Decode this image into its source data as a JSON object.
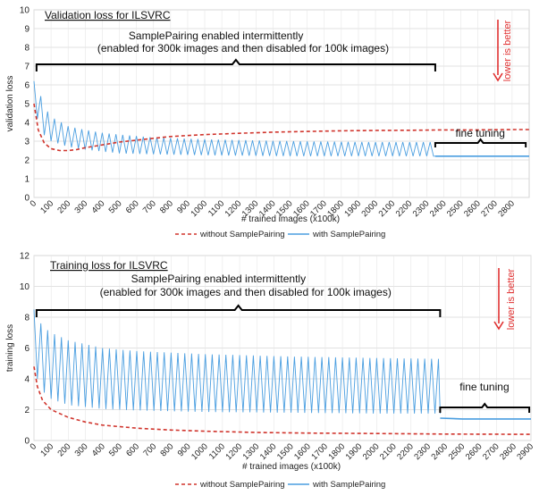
{
  "chart_data": [
    {
      "type": "line",
      "title": "Validation loss for ILSVRC",
      "xlabel": "# trained images (x100k)",
      "ylabel": "validation loss",
      "xlim": [
        0,
        2900
      ],
      "ylim": [
        0,
        10
      ],
      "x_ticks": [
        "0",
        "100",
        "200",
        "300",
        "400",
        "500",
        "600",
        "700",
        "800",
        "900",
        "1000",
        "1100",
        "1200",
        "1300",
        "1400",
        "1500",
        "1600",
        "1700",
        "1800",
        "1900",
        "2000",
        "2100",
        "2200",
        "2300",
        "2400",
        "2500",
        "2600",
        "2700",
        "2800"
      ],
      "y_ticks": [
        "0",
        "1",
        "2",
        "3",
        "4",
        "5",
        "6",
        "7",
        "8",
        "9",
        "10"
      ],
      "grid": true,
      "legend_position": "bottom",
      "annotations": {
        "brace_label": "SamplePairing enabled intermittently",
        "brace_sublabel": "(enabled for 300k images and then disabled for 100k images)",
        "brace_x_range": [
          15,
          2350
        ],
        "fine_label": "fine tuning",
        "fine_x_range": [
          2350,
          2880
        ],
        "lower_label": "lower is better"
      },
      "series": [
        {
          "name": "without SamplePairing",
          "color": "#d0342c",
          "style": "dashed",
          "x": [
            0,
            25,
            60,
            100,
            150,
            200,
            250,
            300,
            400,
            500,
            600,
            700,
            800,
            1000,
            1200,
            1400,
            1600,
            1800,
            2000,
            2200,
            2400,
            2600,
            2800,
            2900
          ],
          "y": [
            5.0,
            3.6,
            2.9,
            2.6,
            2.5,
            2.5,
            2.55,
            2.65,
            2.8,
            2.95,
            3.05,
            3.15,
            3.25,
            3.35,
            3.42,
            3.48,
            3.52,
            3.55,
            3.57,
            3.58,
            3.6,
            3.6,
            3.62,
            3.62
          ]
        },
        {
          "name": "with SamplePairing",
          "color": "#4a9ee0",
          "style": "solid",
          "upper_x": [
            0,
            20,
            50,
            100,
            200,
            300,
            400,
            500,
            700,
            1000,
            1500,
            2000,
            2350
          ],
          "upper_y": [
            6.2,
            6.2,
            5.0,
            4.3,
            3.8,
            3.6,
            3.45,
            3.35,
            3.2,
            3.1,
            3.0,
            2.95,
            2.95
          ],
          "lower_x": [
            0,
            20,
            50,
            100,
            200,
            300,
            400,
            500,
            700,
            1000,
            1500,
            2000,
            2350
          ],
          "lower_y": [
            5.0,
            4.2,
            3.4,
            3.0,
            2.7,
            2.55,
            2.45,
            2.35,
            2.3,
            2.25,
            2.2,
            2.2,
            2.2
          ],
          "fine_tuning_x": [
            2350,
            2900
          ],
          "fine_tuning_y": [
            2.2,
            2.2
          ],
          "period": 40
        }
      ]
    },
    {
      "type": "line",
      "title": "Training loss for ILSVRC",
      "xlabel": "# trained images (x100k)",
      "ylabel": "training loss",
      "xlim": [
        0,
        2900
      ],
      "ylim": [
        0,
        12
      ],
      "x_ticks": [
        "0",
        "100",
        "200",
        "300",
        "400",
        "500",
        "600",
        "700",
        "800",
        "900",
        "1000",
        "1100",
        "1200",
        "1300",
        "1400",
        "1500",
        "1600",
        "1700",
        "1800",
        "1900",
        "2000",
        "2100",
        "2200",
        "2300",
        "2400",
        "2500",
        "2600",
        "2700",
        "2800",
        "2900"
      ],
      "y_ticks": [
        "0",
        "2",
        "4",
        "6",
        "8",
        "10",
        "12"
      ],
      "grid": true,
      "legend_position": "bottom",
      "annotations": {
        "brace_label": "SamplePairing enabled intermittently",
        "brace_sublabel": "(enabled for 300k images and then disabled for 100k images)",
        "brace_x_range": [
          15,
          2370
        ],
        "fine_label": "fine tuning",
        "fine_x_range": [
          2370,
          2890
        ],
        "lower_label": "lower is better"
      },
      "series": [
        {
          "name": "without SamplePairing",
          "color": "#d0342c",
          "style": "dashed",
          "x": [
            0,
            20,
            50,
            100,
            200,
            300,
            400,
            600,
            800,
            1000,
            1300,
            1600,
            2000,
            2400,
            2900
          ],
          "y": [
            4.8,
            3.5,
            2.6,
            2.0,
            1.5,
            1.2,
            1.0,
            0.8,
            0.68,
            0.6,
            0.52,
            0.48,
            0.45,
            0.42,
            0.4
          ]
        },
        {
          "name": "with SamplePairing",
          "color": "#4a9ee0",
          "style": "solid",
          "upper_x": [
            0,
            20,
            50,
            100,
            200,
            400,
            600,
            1000,
            1500,
            2000,
            2370
          ],
          "upper_y": [
            8.5,
            8.0,
            7.4,
            7.0,
            6.5,
            6.0,
            5.8,
            5.6,
            5.45,
            5.35,
            5.3
          ],
          "lower_x": [
            0,
            20,
            50,
            100,
            200,
            400,
            600,
            1000,
            1500,
            2000,
            2370
          ],
          "lower_y": [
            5.0,
            4.0,
            3.2,
            2.7,
            2.3,
            2.05,
            1.95,
            1.85,
            1.8,
            1.75,
            1.75
          ],
          "fine_tuning_x": [
            2370,
            2500,
            2900
          ],
          "fine_tuning_y": [
            1.45,
            1.4,
            1.4
          ],
          "period": 40
        }
      ]
    }
  ]
}
